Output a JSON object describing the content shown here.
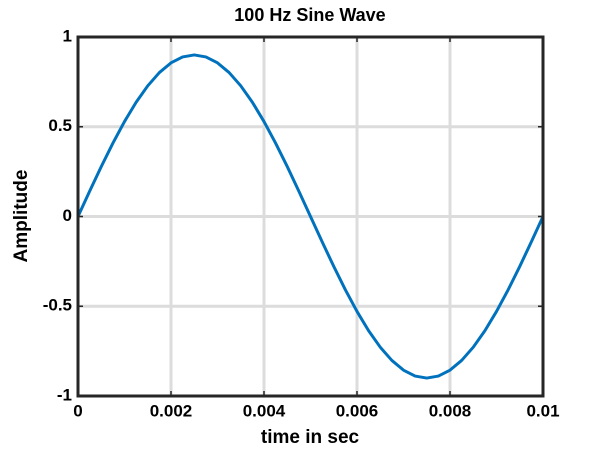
{
  "chart_data": {
    "type": "line",
    "title": "100 Hz Sine Wave",
    "x_label": "time in sec",
    "y_label": "Amplitude",
    "x": [
      0,
      0.00025,
      0.0005,
      0.00075,
      0.001,
      0.00125,
      0.0015,
      0.00175,
      0.002,
      0.00225,
      0.0025,
      0.00275,
      0.003,
      0.00325,
      0.0035,
      0.00375,
      0.004,
      0.00425,
      0.0045,
      0.00475,
      0.005,
      0.00525,
      0.0055,
      0.00575,
      0.006,
      0.00625,
      0.0065,
      0.00675,
      0.007,
      0.00725,
      0.0075,
      0.00775,
      0.008,
      0.00825,
      0.0085,
      0.00875,
      0.009,
      0.00925,
      0.0095,
      0.00975,
      0.01
    ],
    "values": [
      0,
      0.1408,
      0.2781,
      0.4086,
      0.529,
      0.6364,
      0.7281,
      0.8019,
      0.856,
      0.8889,
      0.9,
      0.8889,
      0.856,
      0.8019,
      0.7281,
      0.6364,
      0.529,
      0.4086,
      0.2781,
      0.1408,
      0,
      -0.1408,
      -0.2781,
      -0.4086,
      -0.529,
      -0.6364,
      -0.7281,
      -0.8019,
      -0.856,
      -0.8889,
      -0.9,
      -0.8889,
      -0.856,
      -0.8019,
      -0.7281,
      -0.6364,
      -0.529,
      -0.4086,
      -0.2781,
      -0.1408,
      0
    ],
    "color": "#0072bd",
    "xlim": [
      0,
      0.01
    ],
    "xticks": [
      0,
      0.002,
      0.004,
      0.006,
      0.008,
      0.01
    ],
    "ylim": [
      -1,
      1
    ],
    "yticks": [
      -1,
      -0.5,
      0,
      0.5,
      1
    ],
    "grid": true
  }
}
